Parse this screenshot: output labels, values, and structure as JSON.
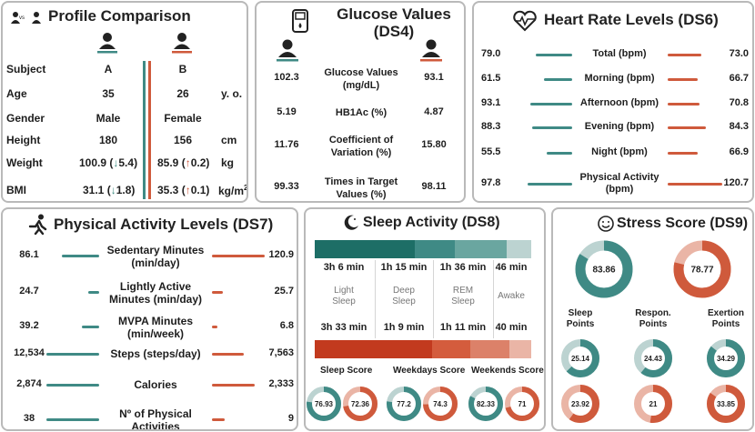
{
  "profile": {
    "title": "Profile Comparison",
    "vs": "vs",
    "rows": [
      {
        "label": "Subject",
        "a": "A",
        "b": "B",
        "unit": ""
      },
      {
        "label": "Age",
        "a": "35",
        "b": "26",
        "unit": "y. o."
      },
      {
        "label": "Gender",
        "a": "Male",
        "b": "Female",
        "unit": ""
      },
      {
        "label": "Height",
        "a": "180",
        "b": "156",
        "unit": "cm"
      }
    ],
    "weight": {
      "label": "Weight",
      "a": "100.9",
      "a_arrow": "↓",
      "a_delta": "5.4",
      "b": "85.9",
      "b_arrow": "↑",
      "b_delta": "0.2",
      "unit": "kg"
    },
    "bmi": {
      "label": "BMI",
      "a": "31.1",
      "a_arrow": "↓",
      "a_delta": "1.8",
      "b": "35.3",
      "b_arrow": "↑",
      "b_delta": "0.1",
      "unit": "kg/m",
      "unit_sup": "2"
    }
  },
  "glucose": {
    "title_line1": "Glucose Values",
    "title_line2": "(DS4)",
    "rows": [
      {
        "a": "102.3",
        "label1": "Glucose Values",
        "label2": "(mg/dL)",
        "b": "93.1"
      },
      {
        "a": "5.19",
        "label1": "HB1Ac (%)",
        "label2": "",
        "b": "4.87"
      },
      {
        "a": "11.76",
        "label1": "Coefficient of",
        "label2": "Variation (%)",
        "b": "15.80"
      },
      {
        "a": "99.33",
        "label1": "Times in Target",
        "label2": "Values (%)",
        "b": "98.11"
      }
    ]
  },
  "heart": {
    "title": "Heart Rate Levels (DS6)",
    "rows": [
      {
        "a": "79.0",
        "label1": "Total (bpm)",
        "label2": "",
        "b": "73.0",
        "a_frac": 0.66,
        "b_frac": 0.61
      },
      {
        "a": "61.5",
        "label1": "Morning (bpm)",
        "label2": "",
        "b": "66.7",
        "a_frac": 0.51,
        "b_frac": 0.55
      },
      {
        "a": "93.1",
        "label1": "Afternoon (bpm)",
        "label2": "",
        "b": "70.8",
        "a_frac": 0.77,
        "b_frac": 0.59
      },
      {
        "a": "88.3",
        "label1": "Evening (bpm)",
        "label2": "",
        "b": "84.3",
        "a_frac": 0.73,
        "b_frac": 0.7
      },
      {
        "a": "55.5",
        "label1": "Night (bpm)",
        "label2": "",
        "b": "66.9",
        "a_frac": 0.46,
        "b_frac": 0.55
      },
      {
        "a": "97.8",
        "label1": "Physical Activity",
        "label2": "(bpm)",
        "b": "120.7",
        "a_frac": 0.81,
        "b_frac": 1.0
      }
    ]
  },
  "activity": {
    "title": "Physical Activity Levels (DS7)",
    "rows": [
      {
        "a": "86.1",
        "label1": "Sedentary Minutes",
        "label2": "(min/day)",
        "b": "120.9",
        "a_frac": 0.71,
        "b_frac": 1.0
      },
      {
        "a": "24.7",
        "label1": "Lightly Active",
        "label2": "Minutes (min/day)",
        "b": "25.7",
        "a_frac": 0.2,
        "b_frac": 0.21
      },
      {
        "a": "39.2",
        "label1": "MVPA Minutes",
        "label2": "(min/week)",
        "b": "6.8",
        "a_frac": 0.32,
        "b_frac": 0.1
      },
      {
        "a": "12,534",
        "label1": "Steps (steps/day)",
        "label2": "",
        "b": "7,563",
        "a_frac": 1.0,
        "b_frac": 0.6
      },
      {
        "a": "2,874",
        "label1": "Calories",
        "label2": "",
        "b": "2,333",
        "a_frac": 1.0,
        "b_frac": 0.81
      },
      {
        "a": "38",
        "label1": "Nº of Physical",
        "label2": "Activities",
        "b": "9",
        "a_frac": 1.0,
        "b_frac": 0.24
      }
    ]
  },
  "sleep": {
    "title": "Sleep Activity (DS8)",
    "a_values": [
      "3h 6 min",
      "1h 15 min",
      "1h 36 min",
      "46 min"
    ],
    "b_values": [
      "3h 33 min",
      "1h 9 min",
      "1h 11 min",
      "40 min"
    ],
    "phases": [
      {
        "label1": "Light",
        "label2": "Sleep"
      },
      {
        "label1": "Deep",
        "label2": "Sleep"
      },
      {
        "label1": "REM",
        "label2": "Sleep"
      },
      {
        "label1": "Awake",
        "label2": ""
      }
    ],
    "a_minutes": [
      186,
      75,
      96,
      46
    ],
    "b_minutes": [
      213,
      69,
      71,
      40
    ],
    "a_colors": [
      "#1d6e66",
      "#3f8a85",
      "#6aa6a0",
      "#bcd3d1"
    ],
    "b_colors": [
      "#c23a1e",
      "#d45c3d",
      "#dc8169",
      "#eab5a6"
    ],
    "score_labels": [
      "Sleep Score",
      "Weekdays Score",
      "Weekends Score"
    ],
    "scores": [
      {
        "a": 76.93,
        "b": 72.36
      },
      {
        "a": 77.2,
        "b": 74.3
      },
      {
        "a": 82.33,
        "b": 71.0
      }
    ]
  },
  "stress": {
    "title": "Stress Score (DS9)",
    "main": {
      "a": 83.86,
      "b": 78.77
    },
    "point_labels": [
      {
        "label1": "Sleep",
        "label2": "Points"
      },
      {
        "label1": "Respon.",
        "label2": "Points"
      },
      {
        "label1": "Exertion",
        "label2": "Points"
      }
    ],
    "points_a": [
      25.14,
      24.43,
      34.29
    ],
    "points_b": [
      23.92,
      21.0,
      33.85
    ],
    "points_max": 40
  },
  "colors": {
    "teal": "#3f8a85",
    "teal_light": "#bcd3d1",
    "red": "#cf5a3c",
    "red_light": "#eab5a6"
  }
}
